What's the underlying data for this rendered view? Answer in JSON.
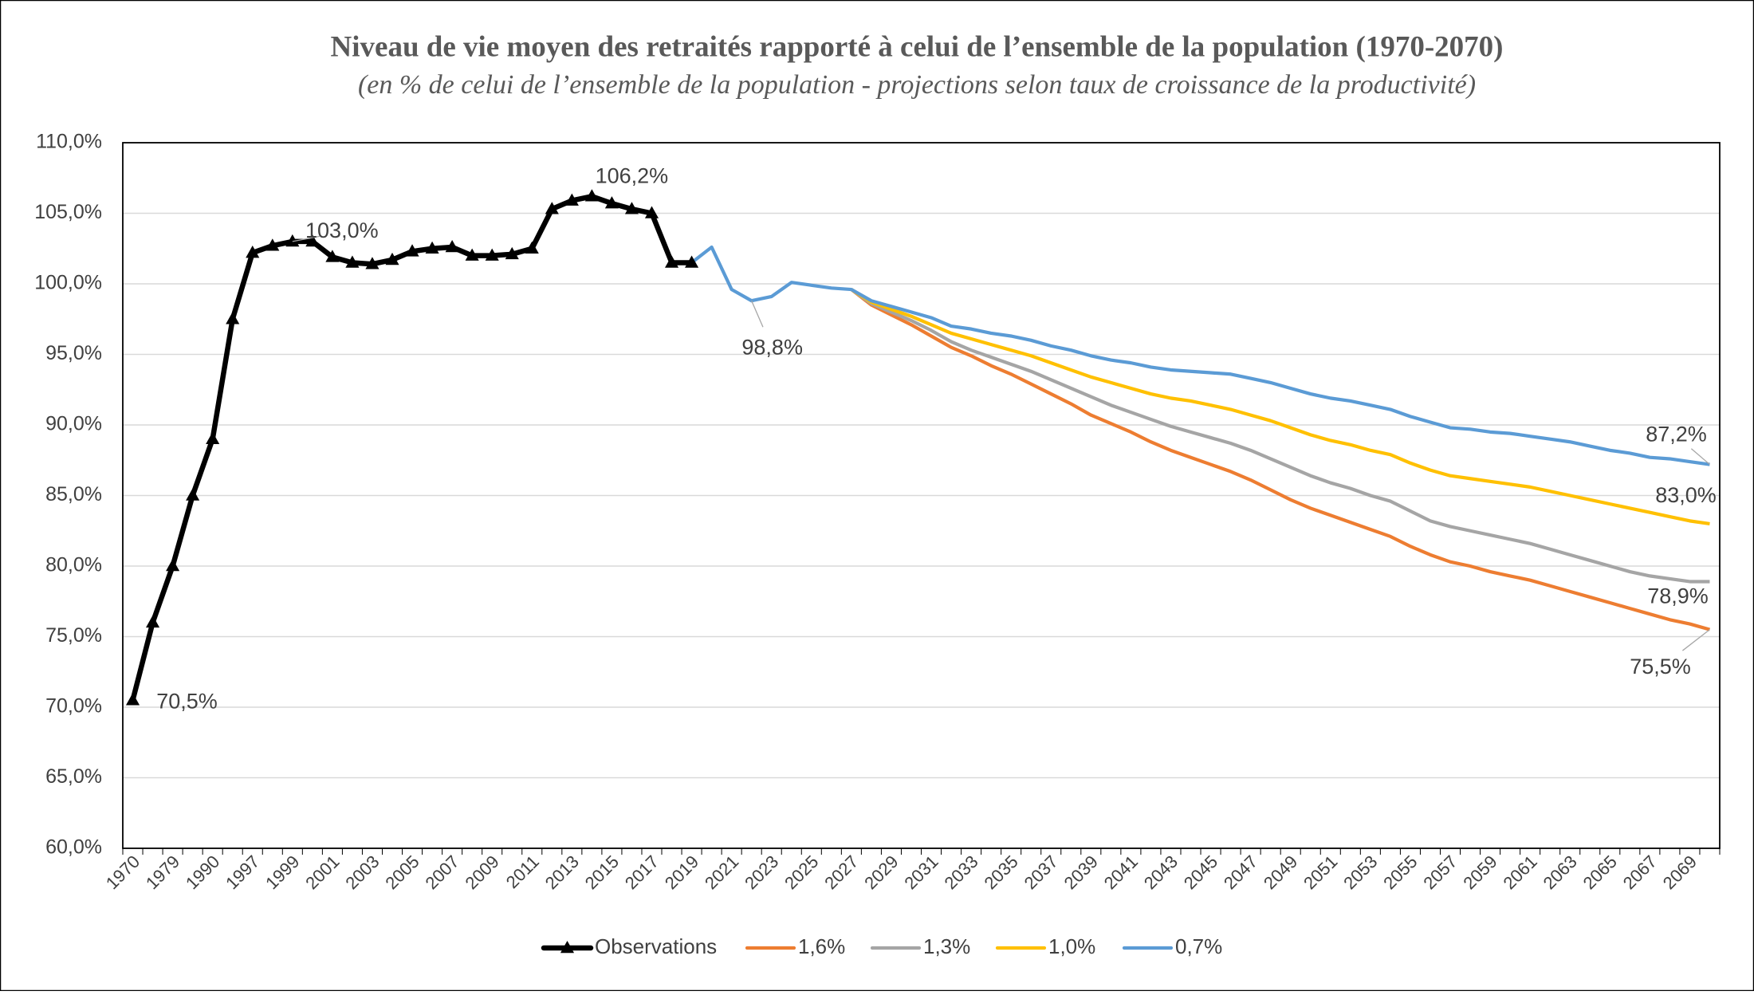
{
  "chart_data": {
    "type": "line",
    "title": "Niveau de vie moyen des retraités rapporté à celui de l’ensemble de la population (1970-2070)",
    "subtitle": "(en % de celui de l’ensemble de la population - projections selon taux de croissance de la productivité)",
    "categories": [
      "1970",
      null,
      "1979",
      null,
      "1990",
      null,
      "1997",
      null,
      "1999",
      null,
      "2001",
      null,
      "2003",
      null,
      "2005",
      null,
      "2007",
      null,
      "2009",
      null,
      "2011",
      null,
      "2013",
      null,
      "2015",
      null,
      "2017",
      null,
      "2019",
      null,
      "2021",
      null,
      "2023",
      null,
      "2025",
      null,
      "2027",
      null,
      "2029",
      null,
      "2031",
      null,
      "2033",
      null,
      "2035",
      null,
      "2037",
      null,
      "2039",
      null,
      "2041",
      null,
      "2043",
      null,
      "2045",
      null,
      "2047",
      null,
      "2049",
      null,
      "2051",
      null,
      "2053",
      null,
      "2055",
      null,
      "2057",
      null,
      "2059",
      null,
      "2061",
      null,
      "2063",
      null,
      "2065",
      null,
      "2067",
      null,
      "2069",
      null
    ],
    "ylim": [
      60,
      110
    ],
    "yticks": [
      {
        "value": 60,
        "label": "60,0%"
      },
      {
        "value": 65,
        "label": "65,0%"
      },
      {
        "value": 70,
        "label": "70,0%"
      },
      {
        "value": 75,
        "label": "75,0%"
      },
      {
        "value": 80,
        "label": "80,0%"
      },
      {
        "value": 85,
        "label": "85,0%"
      },
      {
        "value": 90,
        "label": "90,0%"
      },
      {
        "value": 95,
        "label": "95,0%"
      },
      {
        "value": 100,
        "label": "100,0%"
      },
      {
        "value": 105,
        "label": "105,0%"
      },
      {
        "value": 110,
        "label": "110,0%"
      }
    ],
    "grid": true,
    "legend": "bottom",
    "series": [
      {
        "name": "Observations",
        "color": "#000000",
        "marker": "triangle",
        "values": [
          70.5,
          76.0,
          80.0,
          85.0,
          89.0,
          97.5,
          102.2,
          102.7,
          103.0,
          103.0,
          101.9,
          101.5,
          101.4,
          101.7,
          102.3,
          102.5,
          102.6,
          102.0,
          102.0,
          102.1,
          102.5,
          105.3,
          105.9,
          106.2,
          105.7,
          105.3,
          105.0,
          101.5,
          101.5,
          null,
          null,
          null,
          null,
          null,
          null,
          null,
          null,
          null,
          null,
          null,
          null,
          null,
          null,
          null,
          null,
          null,
          null,
          null,
          null,
          null,
          null,
          null,
          null,
          null,
          null,
          null,
          null,
          null,
          null,
          null,
          null,
          null,
          null,
          null,
          null,
          null,
          null,
          null,
          null,
          null,
          null,
          null,
          null,
          null,
          null,
          null,
          null,
          null,
          null,
          null
        ],
        "value_labels": [
          "70,5%",
          null,
          null,
          null,
          null,
          null,
          null,
          null,
          "103,0%",
          null,
          null,
          null,
          null,
          null,
          null,
          null,
          null,
          null,
          null,
          null,
          null,
          null,
          null,
          "106,2%",
          null,
          null,
          null,
          null,
          null,
          null,
          null,
          null,
          null,
          null,
          null,
          null,
          null,
          null,
          null,
          null,
          null,
          null,
          null,
          null,
          null,
          null,
          null,
          null,
          null,
          null,
          null,
          null,
          null,
          null,
          null,
          null,
          null,
          null,
          null,
          null,
          null,
          null,
          null,
          null,
          null,
          null,
          null,
          null,
          null,
          null,
          null,
          null,
          null,
          null,
          null,
          null,
          null,
          null,
          null,
          null
        ]
      },
      {
        "name": "1,6%",
        "color": "#ED7D31",
        "values": [
          null,
          null,
          null,
          null,
          null,
          null,
          null,
          null,
          null,
          null,
          null,
          null,
          null,
          null,
          null,
          null,
          null,
          null,
          null,
          null,
          null,
          null,
          null,
          null,
          null,
          null,
          null,
          null,
          null,
          null,
          null,
          null,
          null,
          null,
          null,
          null,
          99.6,
          98.5,
          97.8,
          97.1,
          96.3,
          95.5,
          94.9,
          94.2,
          93.6,
          92.9,
          92.2,
          91.5,
          90.7,
          90.1,
          89.5,
          88.8,
          88.2,
          87.7,
          87.2,
          86.7,
          86.1,
          85.4,
          84.7,
          84.1,
          83.6,
          83.1,
          82.6,
          82.1,
          81.4,
          80.8,
          80.3,
          80.0,
          79.6,
          79.3,
          79.0,
          78.6,
          78.2,
          77.8,
          77.4,
          77.0,
          76.6,
          76.2,
          75.9,
          75.5
        ],
        "value_labels": [
          null,
          null,
          null,
          null,
          null,
          null,
          null,
          null,
          null,
          null,
          null,
          null,
          null,
          null,
          null,
          null,
          null,
          null,
          null,
          null,
          null,
          null,
          null,
          null,
          null,
          null,
          null,
          null,
          null,
          null,
          null,
          null,
          null,
          null,
          null,
          null,
          null,
          null,
          null,
          null,
          null,
          null,
          null,
          null,
          null,
          null,
          null,
          null,
          null,
          null,
          null,
          null,
          null,
          null,
          null,
          null,
          null,
          null,
          null,
          null,
          null,
          null,
          null,
          null,
          null,
          null,
          null,
          null,
          null,
          null,
          null,
          null,
          null,
          null,
          null,
          null,
          null,
          null,
          null,
          "75,5%"
        ]
      },
      {
        "name": "1,3%",
        "color": "#A5A5A5",
        "values": [
          null,
          null,
          null,
          null,
          null,
          null,
          null,
          null,
          null,
          null,
          null,
          null,
          null,
          null,
          null,
          null,
          null,
          null,
          null,
          null,
          null,
          null,
          null,
          null,
          null,
          null,
          null,
          null,
          null,
          null,
          null,
          null,
          null,
          null,
          null,
          null,
          99.6,
          98.6,
          98.0,
          97.4,
          96.7,
          95.9,
          95.3,
          94.8,
          94.3,
          93.8,
          93.2,
          92.6,
          92.0,
          91.4,
          90.9,
          90.4,
          89.9,
          89.5,
          89.1,
          88.7,
          88.2,
          87.6,
          87.0,
          86.4,
          85.9,
          85.5,
          85.0,
          84.6,
          83.9,
          83.2,
          82.8,
          82.5,
          82.2,
          81.9,
          81.6,
          81.2,
          80.8,
          80.4,
          80.0,
          79.6,
          79.3,
          79.1,
          78.9,
          78.9
        ],
        "value_labels": [
          null,
          null,
          null,
          null,
          null,
          null,
          null,
          null,
          null,
          null,
          null,
          null,
          null,
          null,
          null,
          null,
          null,
          null,
          null,
          null,
          null,
          null,
          null,
          null,
          null,
          null,
          null,
          null,
          null,
          null,
          null,
          null,
          null,
          null,
          null,
          null,
          null,
          null,
          null,
          null,
          null,
          null,
          null,
          null,
          null,
          null,
          null,
          null,
          null,
          null,
          null,
          null,
          null,
          null,
          null,
          null,
          null,
          null,
          null,
          null,
          null,
          null,
          null,
          null,
          null,
          null,
          null,
          null,
          null,
          null,
          null,
          null,
          null,
          null,
          null,
          null,
          null,
          null,
          null,
          "78,9%"
        ]
      },
      {
        "name": "1,0%",
        "color": "#FFC000",
        "values": [
          null,
          null,
          null,
          null,
          null,
          null,
          null,
          null,
          null,
          null,
          null,
          null,
          null,
          null,
          null,
          null,
          null,
          null,
          null,
          null,
          null,
          null,
          null,
          null,
          null,
          null,
          null,
          null,
          null,
          null,
          null,
          null,
          null,
          null,
          null,
          null,
          99.6,
          98.7,
          98.2,
          97.7,
          97.1,
          96.5,
          96.1,
          95.7,
          95.3,
          94.9,
          94.4,
          93.9,
          93.4,
          93.0,
          92.6,
          92.2,
          91.9,
          91.7,
          91.4,
          91.1,
          90.7,
          90.3,
          89.8,
          89.3,
          88.9,
          88.6,
          88.2,
          87.9,
          87.3,
          86.8,
          86.4,
          86.2,
          86.0,
          85.8,
          85.6,
          85.3,
          85.0,
          84.7,
          84.4,
          84.1,
          83.8,
          83.5,
          83.2,
          83.0
        ],
        "value_labels": [
          null,
          null,
          null,
          null,
          null,
          null,
          null,
          null,
          null,
          null,
          null,
          null,
          null,
          null,
          null,
          null,
          null,
          null,
          null,
          null,
          null,
          null,
          null,
          null,
          null,
          null,
          null,
          null,
          null,
          null,
          null,
          null,
          null,
          null,
          null,
          null,
          null,
          null,
          null,
          null,
          null,
          null,
          null,
          null,
          null,
          null,
          null,
          null,
          null,
          null,
          null,
          null,
          null,
          null,
          null,
          null,
          null,
          null,
          null,
          null,
          null,
          null,
          null,
          null,
          null,
          null,
          null,
          null,
          null,
          null,
          null,
          null,
          null,
          null,
          null,
          null,
          null,
          null,
          null,
          "83,0%"
        ]
      },
      {
        "name": "0,7%",
        "color": "#5B9BD5",
        "values": [
          null,
          null,
          null,
          null,
          null,
          null,
          null,
          null,
          null,
          null,
          null,
          null,
          null,
          null,
          null,
          null,
          null,
          null,
          null,
          null,
          null,
          null,
          null,
          null,
          null,
          null,
          null,
          null,
          101.5,
          102.6,
          99.6,
          98.8,
          99.1,
          100.1,
          99.9,
          99.7,
          99.6,
          98.8,
          98.4,
          98.0,
          97.6,
          97.0,
          96.8,
          96.5,
          96.3,
          96.0,
          95.6,
          95.3,
          94.9,
          94.6,
          94.4,
          94.1,
          93.9,
          93.8,
          93.7,
          93.6,
          93.3,
          93.0,
          92.6,
          92.2,
          91.9,
          91.7,
          91.4,
          91.1,
          90.6,
          90.2,
          89.8,
          89.7,
          89.5,
          89.4,
          89.2,
          89.0,
          88.8,
          88.5,
          88.2,
          88.0,
          87.7,
          87.6,
          87.4,
          87.2
        ],
        "value_labels": [
          null,
          null,
          null,
          null,
          null,
          null,
          null,
          null,
          null,
          null,
          null,
          null,
          null,
          null,
          null,
          null,
          null,
          null,
          null,
          null,
          null,
          null,
          null,
          null,
          null,
          null,
          null,
          null,
          null,
          null,
          null,
          "98,8%",
          null,
          null,
          null,
          null,
          null,
          null,
          null,
          null,
          null,
          null,
          null,
          null,
          null,
          null,
          null,
          null,
          null,
          null,
          null,
          null,
          null,
          null,
          null,
          null,
          null,
          null,
          null,
          null,
          null,
          null,
          null,
          null,
          null,
          null,
          null,
          null,
          null,
          null,
          null,
          null,
          null,
          null,
          null,
          null,
          null,
          null,
          null,
          "87,2%"
        ]
      }
    ]
  }
}
